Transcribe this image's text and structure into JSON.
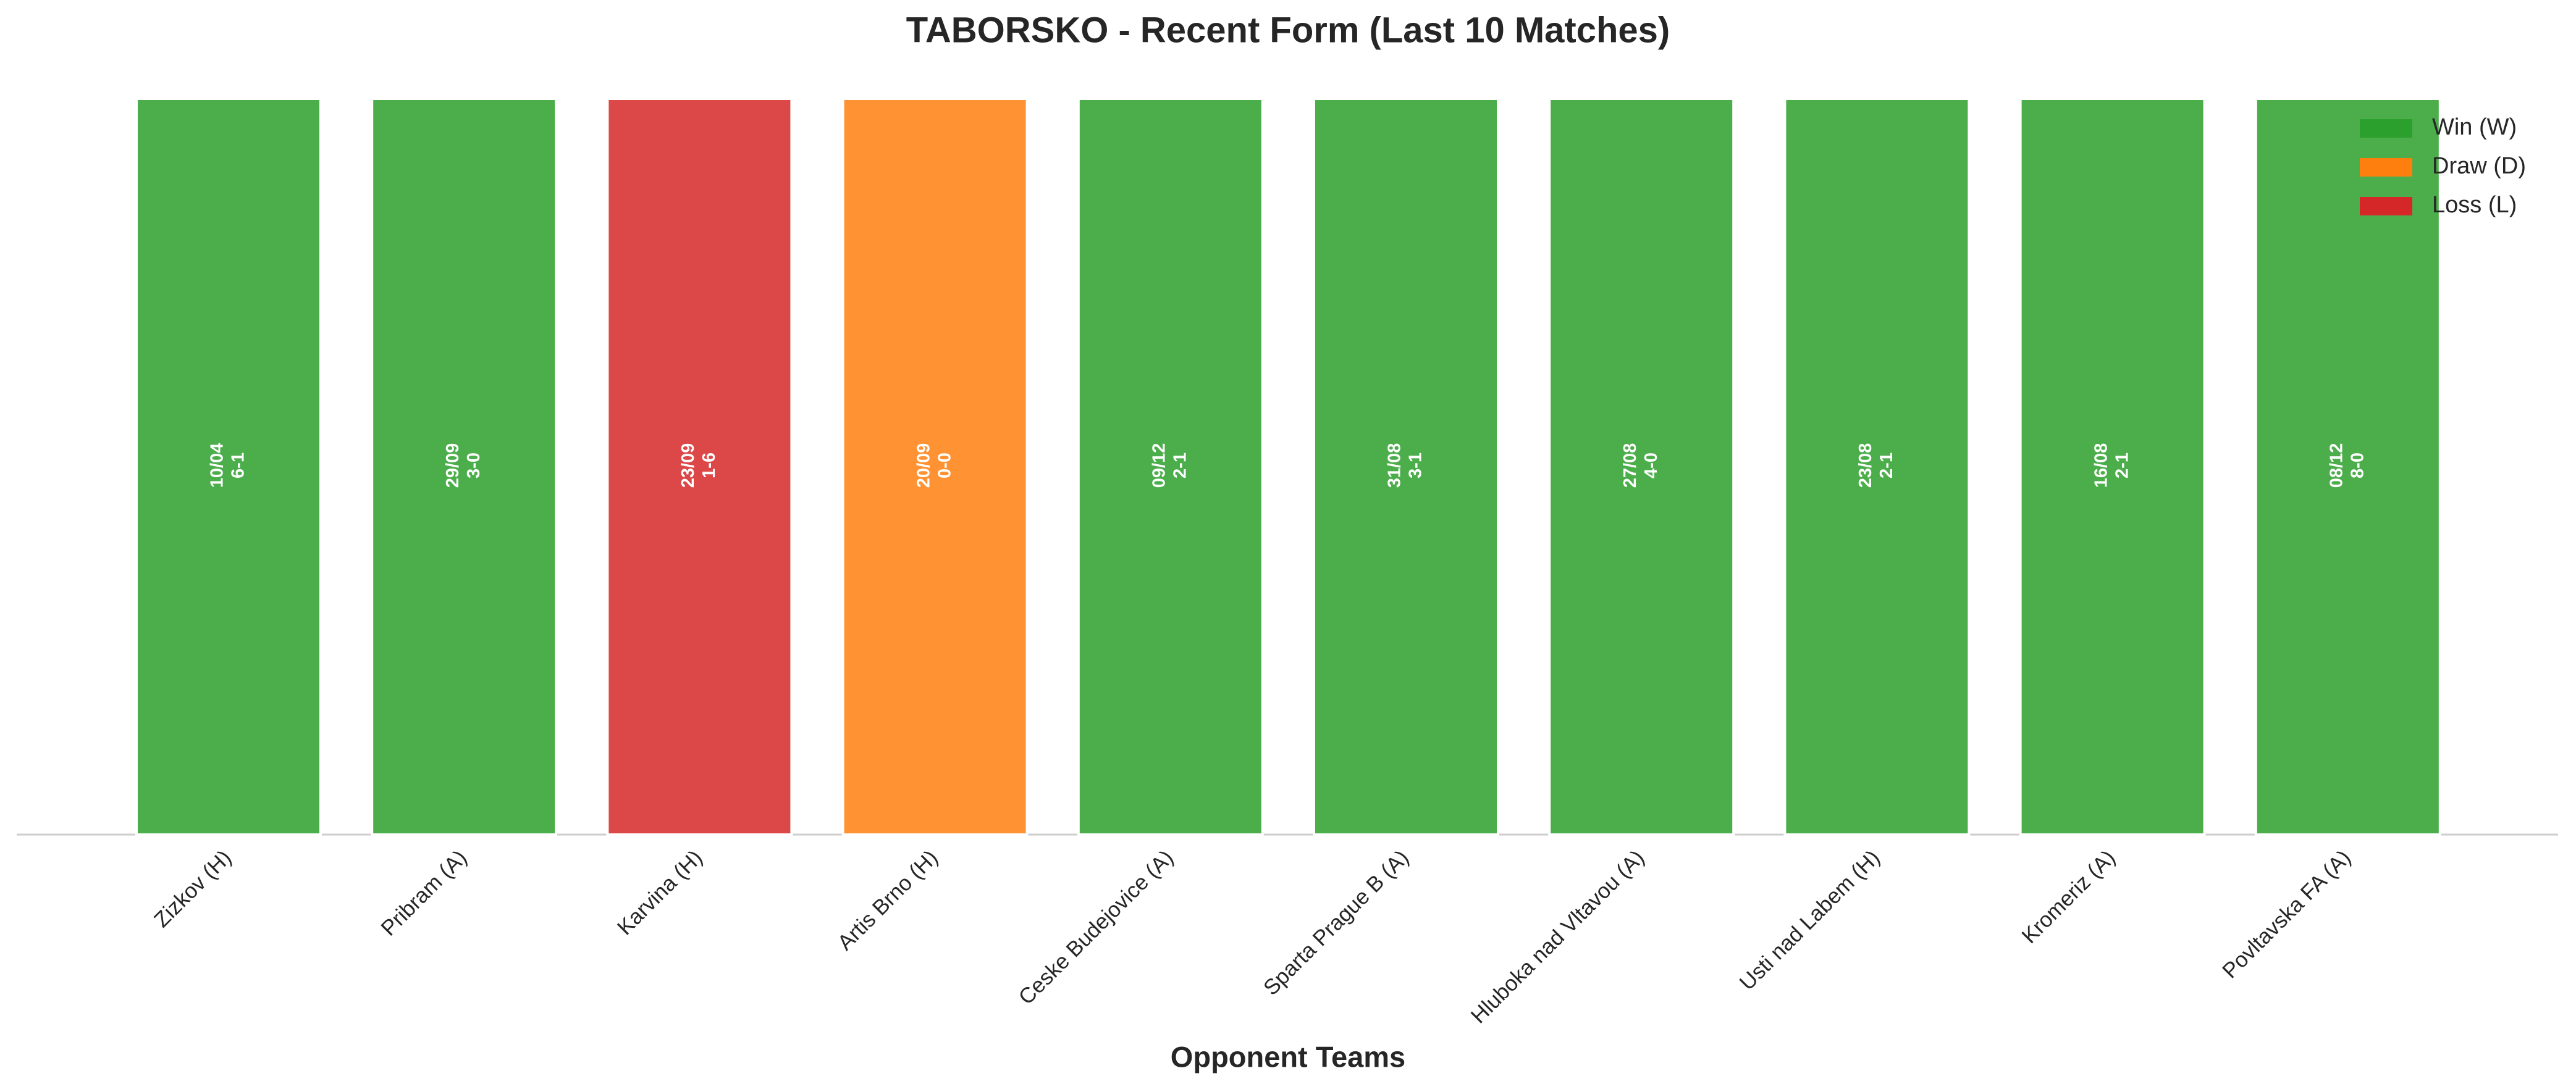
{
  "chart_data": {
    "type": "bar",
    "title": "TABORSKO - Recent Form (Last 10 Matches)",
    "x_label": "Opponent Teams",
    "categories": [
      "Zizkov (H)",
      "Pribram (A)",
      "Karvina (H)",
      "Artis Brno (H)",
      "Ceske Budejovice (A)",
      "Sparta Prague B (A)",
      "Hluboka nad Vltavou (A)",
      "Usti nad Labem (H)",
      "Kromeriz (A)",
      "Povltavska FA (A)"
    ],
    "values": [
      1,
      1,
      1,
      1,
      1,
      1,
      1,
      1,
      1,
      1
    ],
    "dates": [
      "10/04",
      "29/09",
      "23/09",
      "20/09",
      "09/12",
      "31/08",
      "27/08",
      "23/08",
      "16/08",
      "08/12"
    ],
    "scores": [
      "6-1",
      "3-0",
      "1-6",
      "0-0",
      "2-1",
      "3-1",
      "4-0",
      "2-1",
      "2-1",
      "8-0"
    ],
    "colors": [
      "#2ca02c",
      "#2ca02c",
      "#d62728",
      "#ff7f0e",
      "#2ca02c",
      "#2ca02c",
      "#2ca02c",
      "#2ca02c",
      "#2ca02c",
      "#2ca02c"
    ],
    "ylim": [
      0,
      1
    ],
    "legend": [
      {
        "name": "Win (W)",
        "color": "#2ca02c"
      },
      {
        "name": "Draw (D)",
        "color": "#ff7f0e"
      },
      {
        "name": "Loss (L)",
        "color": "#d62728"
      }
    ],
    "legend_position": "upper right"
  }
}
